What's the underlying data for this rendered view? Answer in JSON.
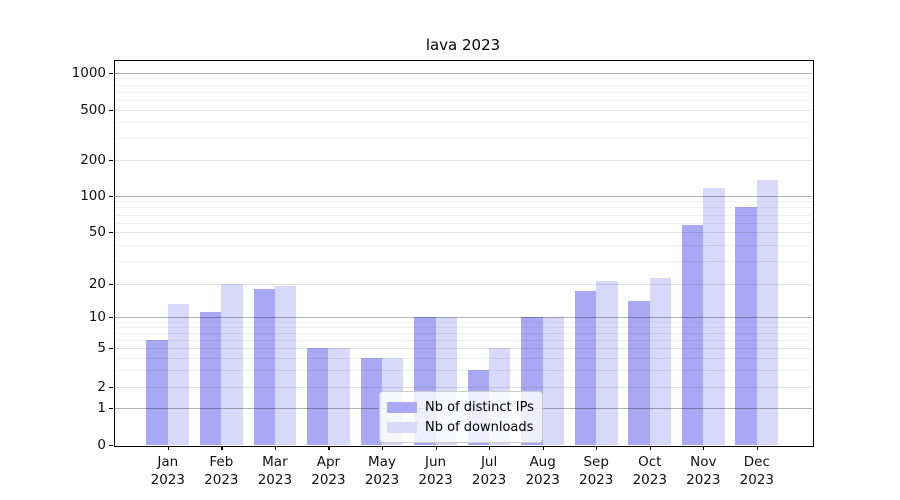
{
  "title": "lava 2023",
  "legend": {
    "items": [
      {
        "label": "Nb of distinct IPs",
        "color": "#a8a8f5"
      },
      {
        "label": "Nb of downloads",
        "color": "#d8d8fa"
      }
    ]
  },
  "chart_data": {
    "type": "bar",
    "title": "lava 2023",
    "categories": [
      "Jan 2023",
      "Feb 2023",
      "Mar 2023",
      "Apr 2023",
      "May 2023",
      "Jun 2023",
      "Jul 2023",
      "Aug 2023",
      "Sep 2023",
      "Oct 2023",
      "Nov 2023",
      "Dec 2023"
    ],
    "series": [
      {
        "name": "Nb of distinct IPs",
        "color": "#a8a8f5",
        "values": [
          6,
          11,
          18,
          5,
          4,
          10,
          3,
          10,
          17,
          14,
          57,
          80
        ]
      },
      {
        "name": "Nb of downloads",
        "color": "#d8d8fa",
        "values": [
          13,
          20,
          19,
          5,
          4,
          10,
          5,
          10,
          21,
          22,
          115,
          135
        ]
      }
    ],
    "xlabel": "",
    "ylabel": "",
    "yscale": "log-like (asinh/symlog), linear below 1",
    "y_ticks": [
      0,
      1,
      2,
      5,
      10,
      20,
      50,
      100,
      200,
      500,
      1000
    ],
    "ylim": [
      0,
      1270
    ],
    "grid": true,
    "legend_position": "lower center"
  }
}
